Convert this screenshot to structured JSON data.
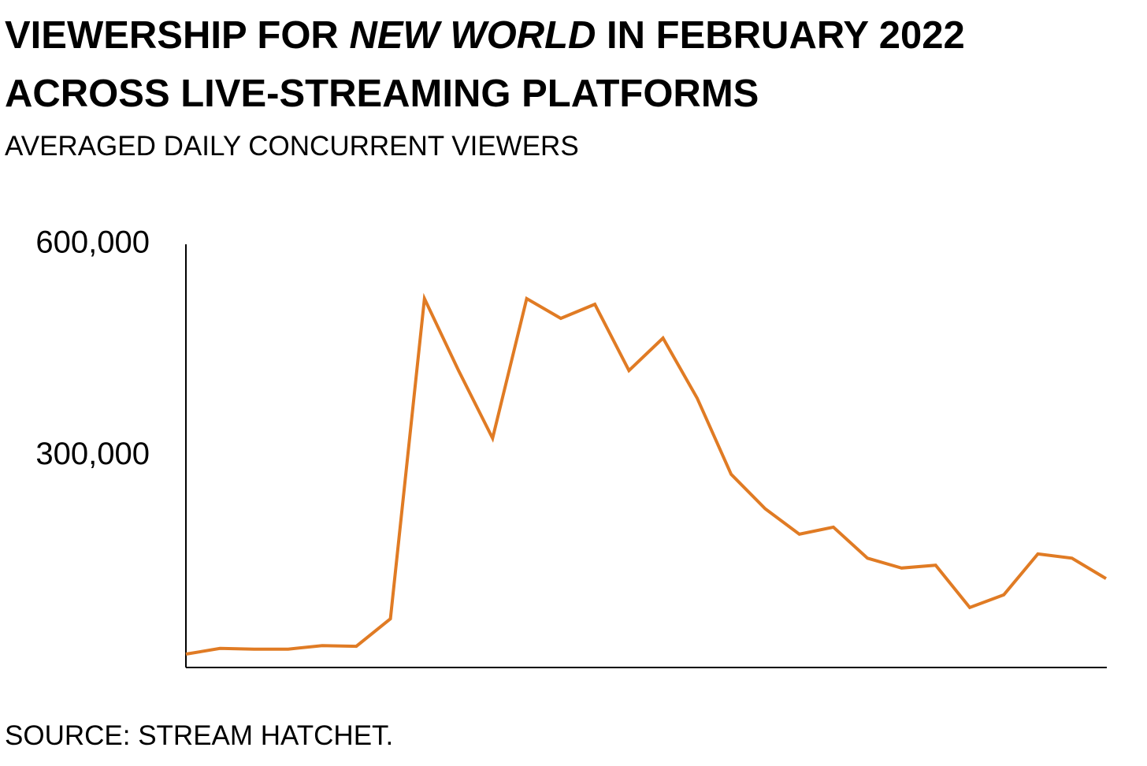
{
  "chart_data": {
    "type": "line",
    "title_parts": [
      "VIEWERSHIP FOR ",
      "NEW WORLD",
      " IN FEBRUARY 2022",
      "ACROSS LIVE-STREAMING PLATFORMS"
    ],
    "subtitle": "AVERAGED DAILY CONCURRENT VIEWERS",
    "source": "SOURCE: STREAM HATCHET.",
    "color": "#e07b24",
    "values": [
      19000,
      27000,
      26000,
      26000,
      31000,
      30000,
      69000,
      523000,
      421000,
      325000,
      523000,
      495000,
      515000,
      421000,
      467000,
      382000,
      274000,
      225000,
      189000,
      199000,
      155000,
      141000,
      145000,
      85000,
      103000,
      161000,
      155000,
      126000
    ],
    "ylim": [
      0,
      600000
    ],
    "yticks": [
      {
        "value": 300000,
        "label": "300,000"
      },
      {
        "value": 600000,
        "label": "600,000"
      }
    ]
  }
}
